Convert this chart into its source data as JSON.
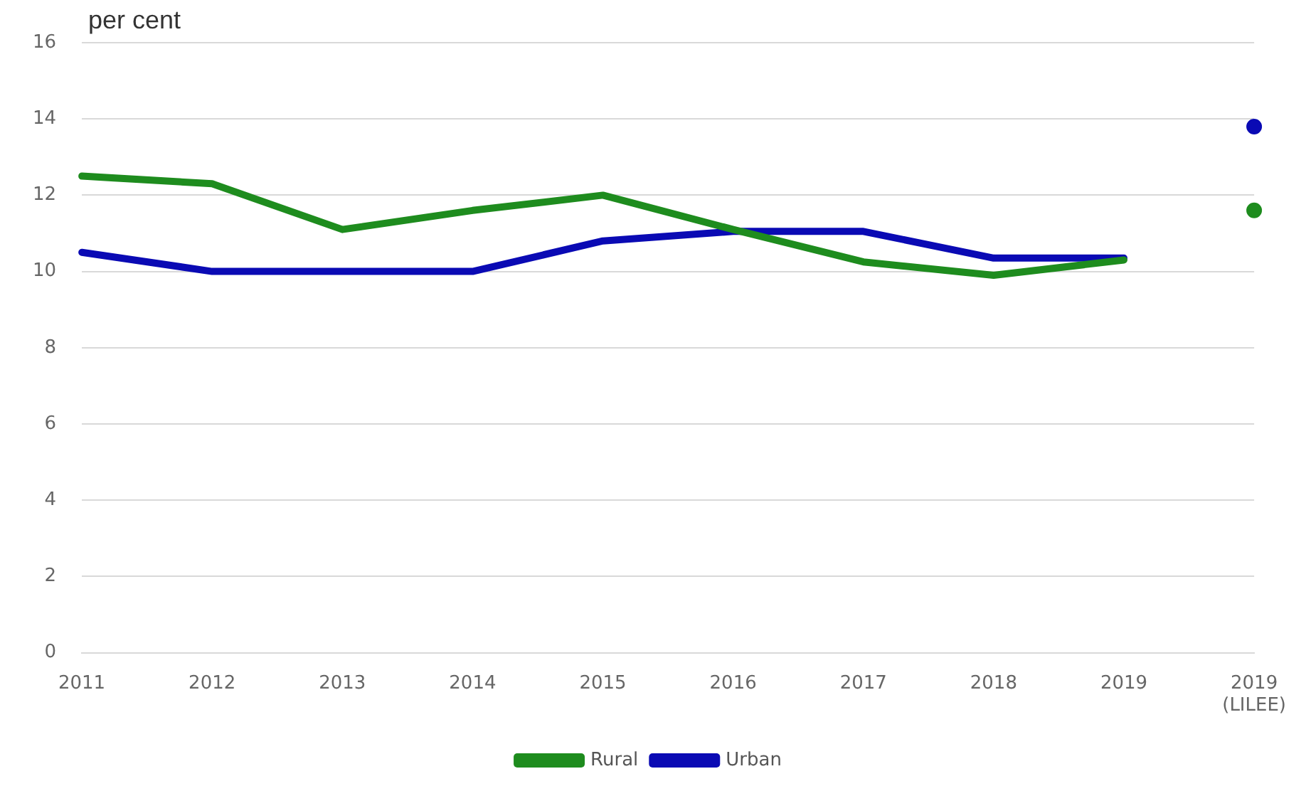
{
  "chart_data": {
    "type": "line",
    "ylabel": "per cent",
    "categories": [
      "2011",
      "2012",
      "2013",
      "2014",
      "2015",
      "2016",
      "2017",
      "2018",
      "2019",
      "2019 (LILEE)"
    ],
    "series": [
      {
        "name": "Rural",
        "color": "#1e8c1e",
        "values": [
          12.5,
          12.3,
          11.1,
          11.6,
          12.0,
          11.1,
          10.25,
          9.9,
          10.3,
          null
        ]
      },
      {
        "name": "Urban",
        "color": "#0a0ab4",
        "values": [
          10.5,
          10.0,
          10.0,
          10.0,
          10.8,
          11.05,
          11.05,
          10.35,
          10.35,
          null
        ]
      },
      {
        "type": "scatter",
        "color": "#1e8c1e",
        "x": [
          "2019 (LILEE)"
        ],
        "values": [
          11.6
        ],
        "marker": "circle"
      },
      {
        "type": "scatter",
        "color": "#0a0ab4",
        "x": [
          "2019 (LILEE)"
        ],
        "values": [
          13.8
        ],
        "marker": "circle"
      }
    ],
    "ylim": [
      0,
      16
    ],
    "yticks": [
      0,
      2,
      4,
      6,
      8,
      10,
      12,
      14,
      16
    ],
    "grid": "y",
    "legend": "bottom",
    "marker": "none",
    "line_style": "solid"
  }
}
